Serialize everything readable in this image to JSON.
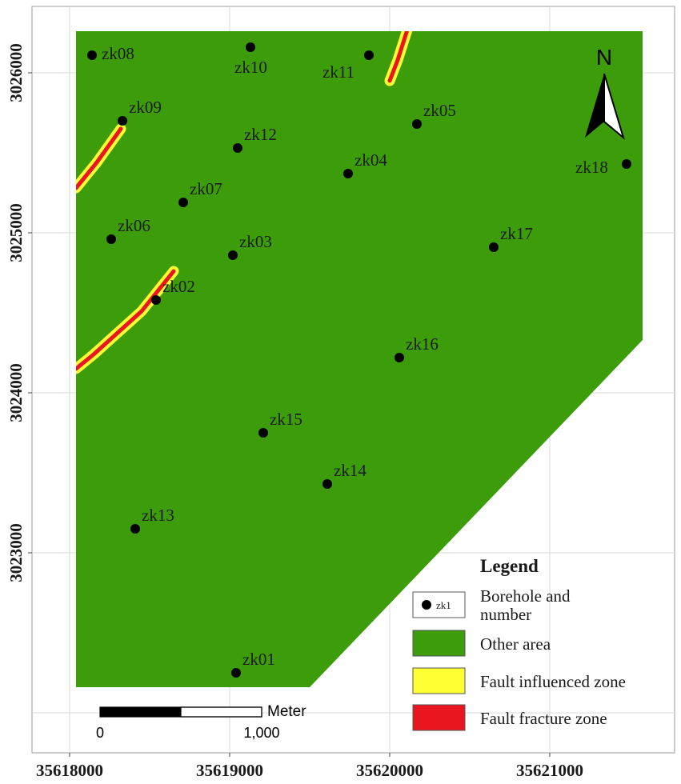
{
  "map": {
    "x_ticks": [
      "35618000",
      "35619000",
      "35620000",
      "35621000"
    ],
    "y_ticks": [
      "3026000",
      "3025000",
      "3024000",
      "3023000"
    ],
    "colors": {
      "other_area": "#3c9c0a",
      "fault_influenced": "#ffff33",
      "fault_fracture": "#e8161e",
      "borehole": "#000000",
      "grid": "#d8d8d8"
    },
    "north_arrow": {
      "label": "N"
    },
    "scale_bar": {
      "unit": "Meter",
      "labels": [
        "0",
        "1,000"
      ]
    },
    "boreholes": [
      {
        "id": "zk01",
        "x": 35619040,
        "y": 3022250
      },
      {
        "id": "zk02",
        "x": 35618540,
        "y": 3024580
      },
      {
        "id": "zk03",
        "x": 35619020,
        "y": 3024860
      },
      {
        "id": "zk04",
        "x": 35619740,
        "y": 3025370
      },
      {
        "id": "zk05",
        "x": 35620170,
        "y": 3025680
      },
      {
        "id": "zk06",
        "x": 35618260,
        "y": 3024960
      },
      {
        "id": "zk07",
        "x": 35618710,
        "y": 3025190
      },
      {
        "id": "zk08",
        "x": 35618140,
        "y": 3026110
      },
      {
        "id": "zk09",
        "x": 35618330,
        "y": 3025700
      },
      {
        "id": "zk10",
        "x": 35619130,
        "y": 3026160
      },
      {
        "id": "zk11",
        "x": 35619870,
        "y": 3026110
      },
      {
        "id": "zk12",
        "x": 35619050,
        "y": 3025530
      },
      {
        "id": "zk13",
        "x": 35618410,
        "y": 3023150
      },
      {
        "id": "zk14",
        "x": 35619610,
        "y": 3023430
      },
      {
        "id": "zk15",
        "x": 35619210,
        "y": 3023750
      },
      {
        "id": "zk16",
        "x": 35620060,
        "y": 3024220
      },
      {
        "id": "zk17",
        "x": 35620650,
        "y": 3024910
      },
      {
        "id": "zk18",
        "x": 35621480,
        "y": 3025430
      }
    ],
    "legend": {
      "title": "Legend",
      "items": [
        {
          "key": "borehole",
          "label_lines": [
            "Borehole and",
            "number"
          ],
          "sample": "zk1"
        },
        {
          "key": "other_area",
          "label_lines": [
            "Other area"
          ]
        },
        {
          "key": "fault_influenced",
          "label_lines": [
            "Fault influenced zone"
          ]
        },
        {
          "key": "fault_fracture",
          "label_lines": [
            "Fault fracture zone"
          ]
        }
      ]
    }
  }
}
